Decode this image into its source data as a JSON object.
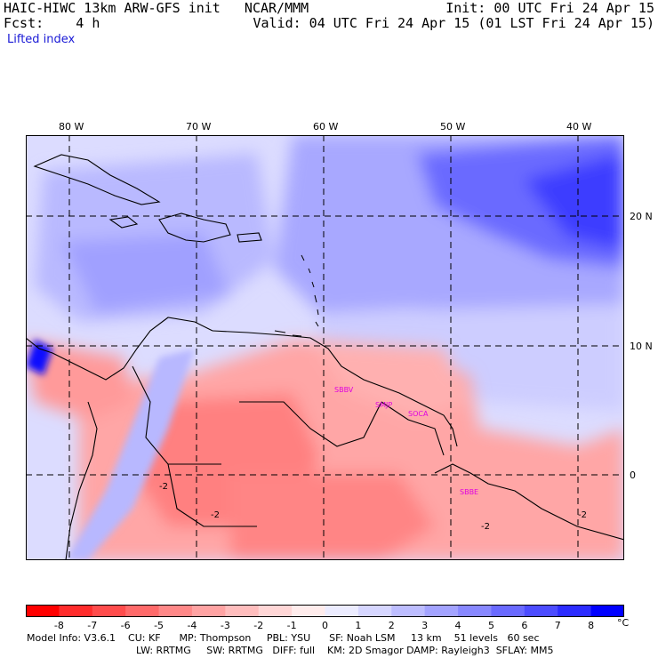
{
  "header": {
    "model_line": "HAIC-HIWC 13km ARW-GFS init   NCAR/MMM",
    "fcst_line": "Fcst:    4 h",
    "field_name": "Lifted index",
    "init_line": "Init: 00 UTC Fri 24 Apr 15",
    "valid_line": "Valid: 04 UTC Fri 24 Apr 15 (01 LST Fri 24 Apr 15)"
  },
  "map": {
    "lon_labels": [
      "80 W",
      "70 W",
      "60 W",
      "50 W",
      "40 W"
    ],
    "lat_labels": [
      "20 N",
      "10 N",
      "0"
    ],
    "stations": [
      "SBBV",
      "SMJP",
      "SOCA",
      "SBBE"
    ],
    "contour_labels": [
      "-2",
      "-2",
      "-2",
      "-2"
    ]
  },
  "colorbar": {
    "colors": [
      "#ff0000",
      "#ff2c2c",
      "#ff4c4c",
      "#ff6a6a",
      "#ff8888",
      "#ffa3a3",
      "#ffbdbd",
      "#ffd6d6",
      "#ffecec",
      "#ececff",
      "#d6d6ff",
      "#bdbdff",
      "#a3a3ff",
      "#8888ff",
      "#6a6aff",
      "#4c4cff",
      "#2c2cff",
      "#0000ff"
    ],
    "labels": [
      "-8",
      "-7",
      "-6",
      "-5",
      "-4",
      "-3",
      "-2",
      "-1",
      "0",
      "1",
      "2",
      "3",
      "4",
      "5",
      "6",
      "7",
      "8"
    ],
    "unit": "°C"
  },
  "footer": {
    "line1": "Model Info: V3.6.1    CU: KF      MP: Thompson     PBL: YSU      SF: Noah LSM     13 km    51 levels   60 sec",
    "line2": "LW: RRTMG     SW: RRTMG   DIFF: full    KM: 2D Smagor DAMP: Rayleigh3  SFLAY: MM5"
  }
}
